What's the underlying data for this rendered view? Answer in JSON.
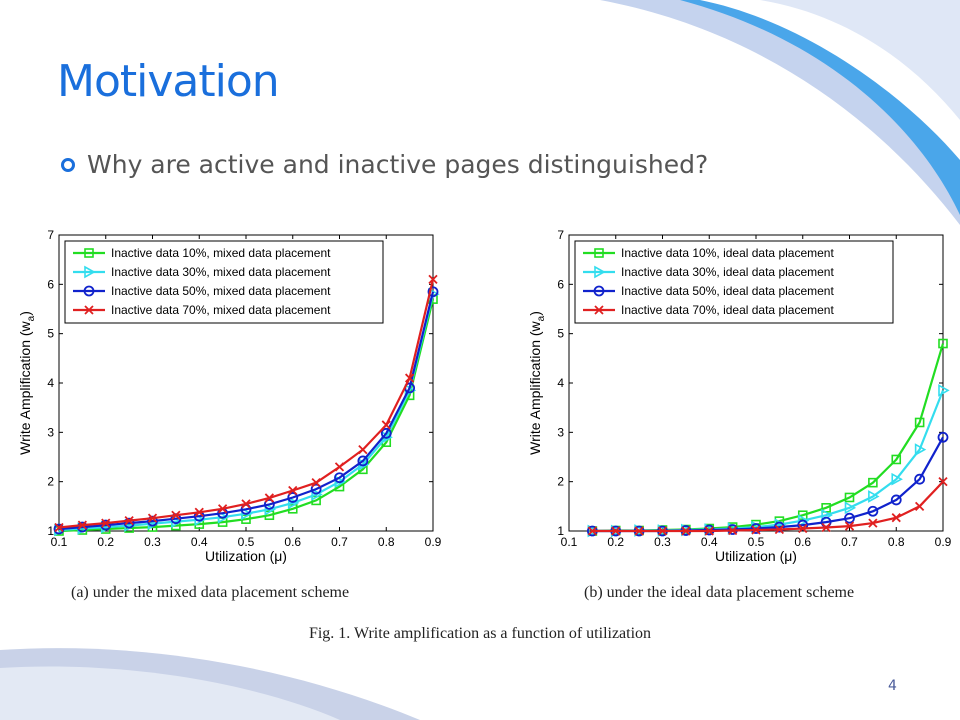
{
  "slide": {
    "title": "Motivation",
    "bullet": "Why are active and inactive pages distinguished?",
    "page_number": "4",
    "figure_caption": "Fig. 1.    Write amplification as a function of utilization"
  },
  "colors": {
    "title": "#1a6fdc",
    "series": [
      "#22dd22",
      "#33ddee",
      "#1022cc",
      "#e02020"
    ]
  },
  "chart_data": [
    {
      "type": "line",
      "caption": "(a)  under the mixed data placement scheme",
      "xlabel": "Utilization (μ)",
      "ylabel": "Write Amplification (w",
      "ylabel_sub": "a",
      "ylabel_close": ")",
      "xlim": [
        0.1,
        0.9
      ],
      "ylim": [
        1,
        7
      ],
      "xticks": [
        "0.1",
        "0.2",
        "0.3",
        "0.4",
        "0.5",
        "0.6",
        "0.7",
        "0.8",
        "0.9"
      ],
      "yticks": [
        "1",
        "2",
        "3",
        "4",
        "5",
        "6",
        "7"
      ],
      "grid": false,
      "legend_position": "top-left",
      "x": [
        0.1,
        0.15,
        0.2,
        0.25,
        0.3,
        0.35,
        0.4,
        0.45,
        0.5,
        0.55,
        0.6,
        0.65,
        0.7,
        0.75,
        0.8,
        0.85,
        0.9
      ],
      "series": [
        {
          "name": "Inactive data 10%, mixed data placement",
          "marker": "square",
          "values": [
            1.0,
            1.02,
            1.04,
            1.06,
            1.08,
            1.11,
            1.14,
            1.18,
            1.24,
            1.32,
            1.45,
            1.62,
            1.9,
            2.25,
            2.8,
            3.75,
            5.7
          ]
        },
        {
          "name": "Inactive data 30%, mixed data placement",
          "marker": "triangle",
          "values": [
            1.02,
            1.05,
            1.08,
            1.11,
            1.15,
            1.19,
            1.23,
            1.28,
            1.35,
            1.44,
            1.57,
            1.74,
            2.0,
            2.35,
            2.9,
            3.85,
            5.8
          ]
        },
        {
          "name": "Inactive data 50%, mixed data placement",
          "marker": "circle",
          "values": [
            1.04,
            1.08,
            1.12,
            1.16,
            1.2,
            1.25,
            1.3,
            1.36,
            1.44,
            1.54,
            1.68,
            1.85,
            2.08,
            2.42,
            2.98,
            3.9,
            5.85
          ]
        },
        {
          "name": "Inactive data 70%, mixed data placement",
          "marker": "x",
          "values": [
            1.07,
            1.12,
            1.16,
            1.21,
            1.26,
            1.32,
            1.38,
            1.45,
            1.55,
            1.67,
            1.82,
            1.98,
            2.3,
            2.65,
            3.15,
            4.1,
            6.1
          ]
        }
      ]
    },
    {
      "type": "line",
      "caption": "(b)  under the ideal data placement scheme",
      "xlabel": "Utilization (μ)",
      "ylabel": "Write Amplification (w",
      "ylabel_sub": "a",
      "ylabel_close": ")",
      "xlim": [
        0.1,
        0.9
      ],
      "ylim": [
        1,
        7
      ],
      "xticks": [
        "0.1",
        "0.2",
        "0.3",
        "0.4",
        "0.5",
        "0.6",
        "0.7",
        "0.8",
        "0.9"
      ],
      "yticks": [
        "1",
        "2",
        "3",
        "4",
        "5",
        "6",
        "7"
      ],
      "grid": false,
      "legend_position": "top-left",
      "x": [
        0.15,
        0.2,
        0.25,
        0.3,
        0.35,
        0.4,
        0.45,
        0.5,
        0.55,
        0.6,
        0.65,
        0.7,
        0.75,
        0.8,
        0.85,
        0.9
      ],
      "series": [
        {
          "name": "Inactive data 10%, ideal data placement",
          "marker": "square",
          "values": [
            1.0,
            1.01,
            1.01,
            1.02,
            1.03,
            1.05,
            1.08,
            1.13,
            1.2,
            1.32,
            1.47,
            1.68,
            1.98,
            2.45,
            3.2,
            4.8
          ]
        },
        {
          "name": "Inactive data 30%, ideal data placement",
          "marker": "triangle",
          "values": [
            1.0,
            1.0,
            1.01,
            1.01,
            1.02,
            1.03,
            1.05,
            1.08,
            1.13,
            1.21,
            1.32,
            1.47,
            1.7,
            2.05,
            2.65,
            3.85
          ]
        },
        {
          "name": "Inactive data 50%, ideal data placement",
          "marker": "circle",
          "values": [
            1.0,
            1.0,
            1.0,
            1.0,
            1.01,
            1.02,
            1.03,
            1.05,
            1.08,
            1.12,
            1.18,
            1.26,
            1.4,
            1.63,
            2.05,
            2.9
          ]
        },
        {
          "name": "Inactive data 70%, ideal data placement",
          "marker": "x",
          "values": [
            1.0,
            1.0,
            1.0,
            1.0,
            1.0,
            1.0,
            1.01,
            1.02,
            1.03,
            1.05,
            1.07,
            1.1,
            1.16,
            1.27,
            1.5,
            2.0
          ]
        }
      ]
    }
  ]
}
